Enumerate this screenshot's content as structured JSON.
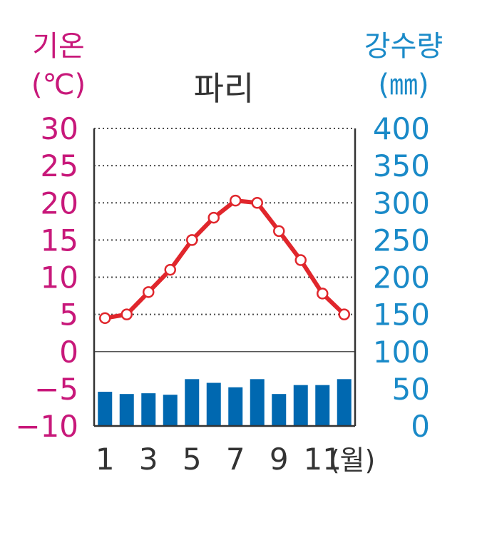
{
  "colors": {
    "temperature_axis": "#c8187a",
    "precipitation_axis": "#1a8ac8",
    "temperature_line": "#e0262c",
    "bars": "#0068b0",
    "grid": "#4a4a4a",
    "text": "#333333"
  },
  "chart_data": {
    "type": "bar",
    "title": "파리",
    "left_axis_label": [
      "기온",
      "(℃)"
    ],
    "right_axis_label": [
      "강수량",
      "(㎜)"
    ],
    "x_tick_labels": [
      "1",
      "3",
      "5",
      "7",
      "9",
      "11"
    ],
    "x_unit_label": "(월)",
    "y_left_ticks": [
      "30",
      "25",
      "20",
      "15",
      "10",
      "5",
      "0",
      "−5",
      "−10"
    ],
    "y_right_ticks": [
      "400",
      "350",
      "300",
      "250",
      "200",
      "150",
      "100",
      "50",
      "0"
    ],
    "y_left_range": [
      -10,
      30
    ],
    "y_right_range": [
      0,
      400
    ],
    "grid": "dotted horizontal lines above 0 ℃",
    "months": [
      1,
      2,
      3,
      4,
      5,
      6,
      7,
      8,
      9,
      10,
      11,
      12
    ],
    "temperature_c": [
      4.5,
      5,
      8,
      11,
      15,
      18,
      20.3,
      20,
      16.2,
      12.3,
      7.8,
      5
    ],
    "precipitation_mm": [
      46,
      43,
      44,
      42,
      63,
      58,
      52,
      63,
      43,
      55,
      55,
      63
    ]
  }
}
